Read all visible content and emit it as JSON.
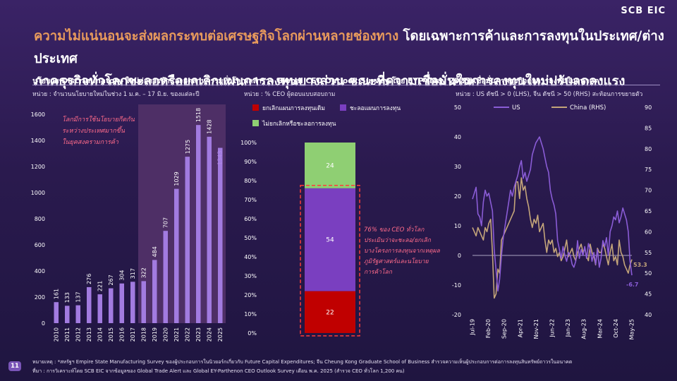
{
  "header": {
    "logo": "SCB EIC",
    "title_part1": "ความไม่แน่นอนจะส่งผลกระทบต่อเศรษฐกิจโลกผ่านหลายช่องทาง ",
    "title_part2": "โดยเฉพาะการค้าและการลงทุนในประเทศ/ต่างประเทศ",
    "title_line2": "ภาคธุรกิจทั่วโลกชะลอหรือยกเลิกแผนการลงทุนบางส่วน ขณะที่ความเชื่อมั่นในการลงทุนใหม่ปรับลดลงแรง"
  },
  "panels": [
    {
      "title": "นโยบาย Discriminatory ใหม่ต่อการค้าและอุตสาหกรรมทั่วโลก",
      "unit": "หน่วย : จำนวนนโยบายใหม่ในช่วง 1 ม.ค. – 17 มิ.ย. ของแต่ละปี"
    },
    {
      "title": "ผลสำรวจ Global CEO Outlook Survey โดย EYP (May 2025)",
      "unit": "หน่วย : % CEO ผู้ตอบแบบสอบถาม"
    },
    {
      "title": "ความเชื่อมั่นภาคธุรกิจต่อการลงทุนในอนาคต*",
      "unit": "หน่วย : US ดัชนี > 0 (LHS), จีน ดัชนี > 50 (RHS) สะท้อนการขยายตัว"
    }
  ],
  "chart_data": [
    {
      "type": "bar",
      "categories": [
        "2010",
        "2011",
        "2012",
        "2013",
        "2014",
        "2015",
        "2016",
        "2017",
        "2018",
        "2019",
        "2020",
        "2021",
        "2022",
        "2023",
        "2024",
        "2025"
      ],
      "values": [
        161,
        133,
        137,
        276,
        221,
        267,
        304,
        317,
        322,
        484,
        707,
        1029,
        1275,
        1518,
        1428,
        1343
      ],
      "ylim": [
        0,
        1600
      ],
      "yticks": [
        0,
        200,
        400,
        600,
        800,
        1000,
        1200,
        1400,
        1600
      ],
      "highlight_from": "2018",
      "annotation": [
        "โลกมีการใช้นโยบายกีดกัน",
        "ระหว่างประเทศมากขึ้น",
        "ในยุคสงครามการค้า"
      ],
      "colors": {
        "bar": "#a27be0",
        "shade": "#4e2f66",
        "annotation": "#ff6b8a",
        "last_label": "#b28ae6"
      }
    },
    {
      "type": "bar",
      "stacked": true,
      "categories": [
        "CEO"
      ],
      "series": [
        {
          "name": "ยกเลิกแผนการลงทุนเดิม",
          "values": [
            22
          ],
          "color": "#c00000"
        },
        {
          "name": "ชะลอแผนการลงทุน",
          "values": [
            54
          ],
          "color": "#7a3fc0"
        },
        {
          "name": "ไม่ยกเลิกหรือชะลอการลงทุน",
          "values": [
            24
          ],
          "color": "#8fcf73"
        }
      ],
      "ylim": [
        0,
        100
      ],
      "yticks": [
        "0%",
        "10%",
        "20%",
        "30%",
        "40%",
        "50%",
        "60%",
        "70%",
        "80%",
        "90%",
        "100%"
      ],
      "annotation": [
        "76% ของ CEO ทั่วโลก",
        "ประเมินว่าจะชะลอ/ยกเลิก",
        "บางโครงการลงทุนจากเหตุผล",
        "ภูมิรัฐศาสตร์และนโยบาย",
        "การค้าโลก"
      ],
      "annotation_color": "#ff6b8a"
    },
    {
      "type": "line",
      "x_ticks": [
        "Jul-19",
        "Feb-20",
        "Sep-20",
        "Apr-21",
        "Nov-21",
        "Jun-22",
        "Jan-23",
        "Aug-23",
        "Mar-24",
        "Oct-24",
        "May-25"
      ],
      "series": [
        {
          "name": "US",
          "axis": "left",
          "color": "#8a5cd6",
          "last_label": "-6.7",
          "values": [
            19,
            21,
            23,
            14,
            13,
            10,
            18,
            22,
            20,
            21,
            18,
            15,
            2,
            -5,
            -12,
            -8,
            0,
            6,
            10,
            14,
            18,
            22,
            20,
            23,
            25,
            27,
            30,
            32,
            26,
            28,
            25,
            27,
            29,
            34,
            36,
            38,
            39,
            40,
            38,
            36,
            33,
            30,
            28,
            22,
            19,
            17,
            14,
            5,
            2,
            -1,
            3,
            0,
            -2,
            1,
            0,
            -3,
            -4,
            -2,
            5,
            -1,
            2,
            0,
            3,
            -1,
            4,
            2,
            -2,
            1,
            -3,
            2,
            -4,
            -1,
            5,
            3,
            6,
            0,
            8,
            10,
            13,
            12,
            15,
            11,
            13,
            16,
            14,
            12,
            8,
            -2,
            -6.7
          ]
        },
        {
          "name": "China (RHS)",
          "axis": "right",
          "color": "#c4a57a",
          "last_label": "53.3",
          "values": [
            61,
            60,
            59,
            61,
            60,
            59,
            58,
            61,
            60,
            62,
            63,
            55,
            44,
            45,
            51,
            50,
            58,
            59,
            60,
            61,
            62,
            63,
            64,
            65,
            72,
            72,
            68,
            73,
            70,
            71,
            68,
            66,
            63,
            61,
            63,
            62,
            64,
            60,
            61,
            62,
            58,
            55,
            58,
            57,
            58,
            55,
            56,
            54,
            55,
            53,
            54,
            56,
            58,
            54,
            55,
            56,
            54,
            53,
            55,
            56,
            57,
            55,
            56,
            54,
            53,
            57,
            55,
            54,
            52,
            56,
            55,
            55,
            57,
            56,
            54,
            52,
            55,
            57,
            53,
            54,
            52,
            58,
            55,
            54,
            52,
            51,
            50,
            52,
            53.3
          ]
        }
      ],
      "left_ylim": [
        -20,
        50
      ],
      "left_yticks": [
        -20,
        -10,
        0,
        10,
        20,
        30,
        40,
        50
      ],
      "right_ylim": [
        40,
        90
      ],
      "right_yticks": [
        40,
        45,
        50,
        55,
        60,
        65,
        70,
        75,
        80,
        85,
        90
      ]
    }
  ],
  "page_number": "11",
  "footnotes": [
    "หมายเหตุ : *สหรัฐฯ Empire State Manufacturing Survey ของผู้ประกอบการในนิวยอร์กเกี่ยวกับ Future Capital Expenditures; จีน Cheung Kong Graduate School of Business สำรวจความเห็นผู้ประกอบการต่อการลงทุนสินทรัพย์ถาวรในอนาคต",
    "ที่มา : การวิเคราะห์โดย SCB EIC จากข้อมูลของ Global Trade Alert และ Global EY-Parthenon CEO Outlook Survey เดือน พ.ค. 2025 (สำรวจ CEO ทั่วโลก 1,200 คน)"
  ]
}
